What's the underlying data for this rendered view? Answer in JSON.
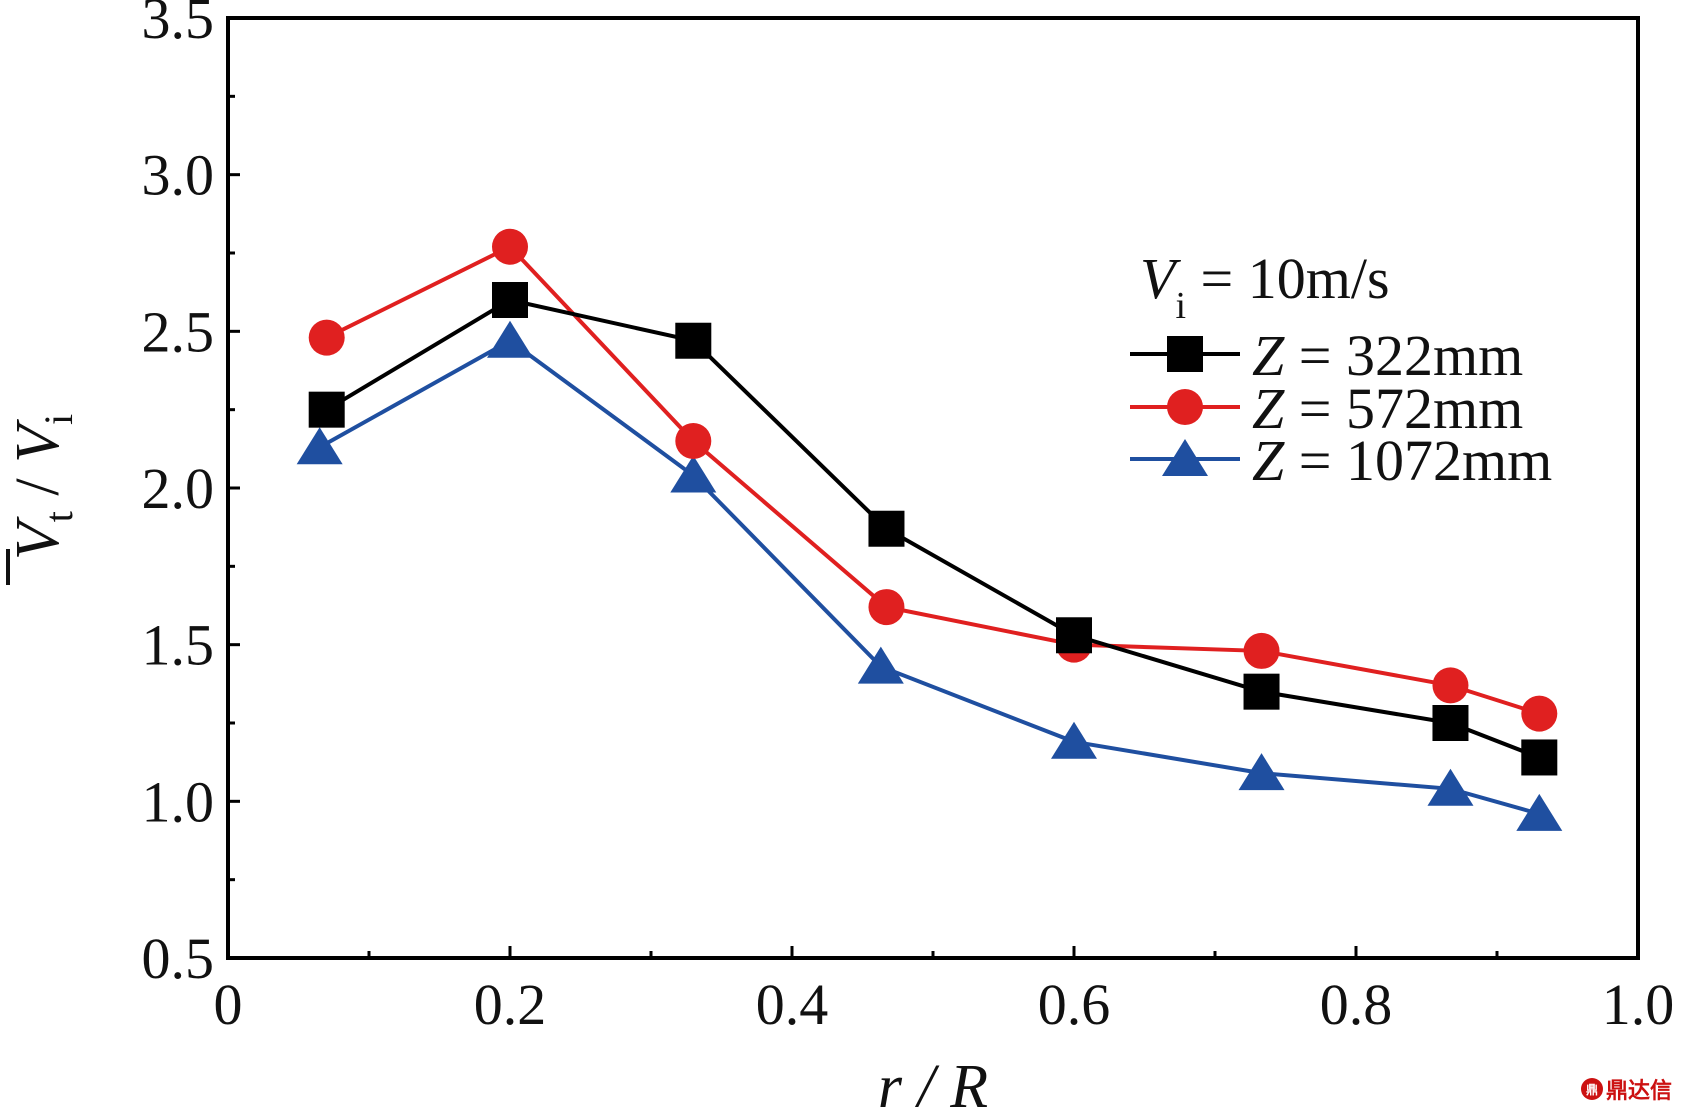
{
  "chart_data": {
    "type": "line",
    "xlabel": "r / R",
    "xlim": [
      0,
      1.0
    ],
    "ylim": [
      0.5,
      3.5
    ],
    "xticks": [
      "0",
      "0.2",
      "0.4",
      "0.6",
      "0.8",
      "1.0"
    ],
    "yticks": [
      "0.5",
      "1.0",
      "1.5",
      "2.0",
      "2.5",
      "3.0",
      "3.5"
    ],
    "ylabel": {
      "main": "V",
      "sub_t": "t",
      "slash": " / ",
      "main2": "V",
      "sub_i": "i"
    },
    "legend_title": {
      "var": "V",
      "sub": "i",
      "text": " = 10m/s"
    },
    "legend_placement": "upper-right",
    "grid": false,
    "series": [
      {
        "name": "Z = 322mm",
        "label_var": "Z",
        "label_rest": " = 322mm",
        "color": "#000000",
        "marker": "square",
        "x": [
          0.07,
          0.2,
          0.33,
          0.467,
          0.6,
          0.733,
          0.867,
          0.93
        ],
        "y": [
          2.25,
          2.6,
          2.47,
          1.87,
          1.53,
          1.35,
          1.25,
          1.14
        ]
      },
      {
        "name": "Z = 572mm",
        "label_var": "Z",
        "label_rest": " = 572mm",
        "color": "#e02020",
        "marker": "circle",
        "x": [
          0.07,
          0.2,
          0.33,
          0.467,
          0.6,
          0.733,
          0.867,
          0.93
        ],
        "y": [
          2.48,
          2.77,
          2.15,
          1.62,
          1.5,
          1.48,
          1.37,
          1.28
        ]
      },
      {
        "name": "Z = 1072mm",
        "label_var": "Z",
        "label_rest": " = 1072mm",
        "color": "#1f4fa0",
        "marker": "triangle",
        "x": [
          0.065,
          0.2,
          0.33,
          0.463,
          0.6,
          0.733,
          0.867,
          0.93
        ],
        "y": [
          2.13,
          2.47,
          2.04,
          1.43,
          1.19,
          1.09,
          1.04,
          0.96
        ]
      }
    ]
  },
  "watermark": {
    "logo": "鼎",
    "text": "鼎达信"
  }
}
